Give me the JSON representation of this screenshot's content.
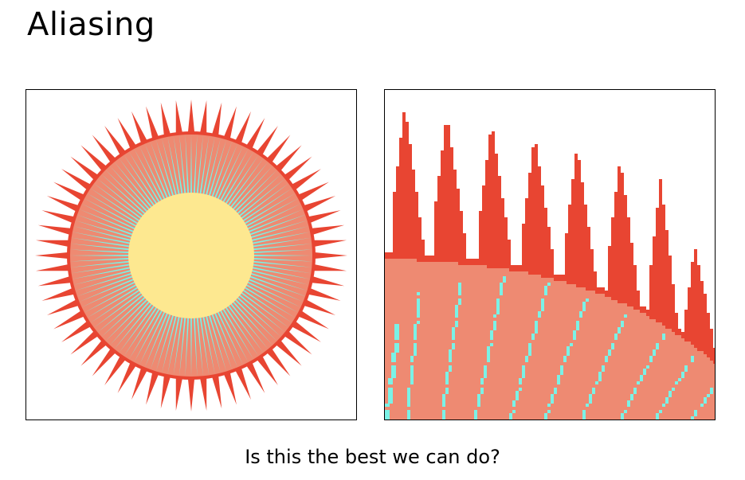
{
  "title": "Aliasing",
  "caption": "Is this the best we can do?",
  "colors": {
    "outer_spikes": "#e84532",
    "salmon_disk": "#ee8a72",
    "cyan_rays": "#7af2e6",
    "sun_core": "#fde890",
    "border": "#000000",
    "background": "#ffffff"
  },
  "icons": {
    "left_panel": "sun-burst-icon",
    "right_panel": "zoomed-aliased-sun-burst-icon"
  }
}
